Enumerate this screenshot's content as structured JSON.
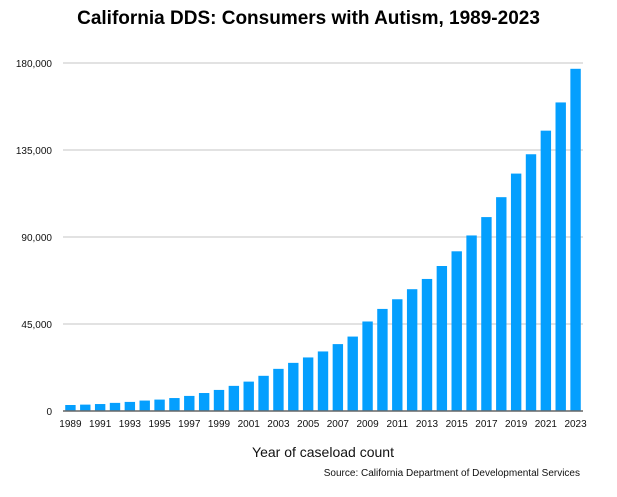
{
  "chart_data": {
    "type": "bar",
    "title": "California DDS: Consumers with Autism, 1989-2023",
    "xlabel": "Year of caseload count",
    "ylabel": "",
    "source": "Source: California Department of Developmental Services",
    "ylim": [
      0,
      180000
    ],
    "yticks": [
      0,
      45000,
      90000,
      135000,
      180000
    ],
    "ytick_labels": [
      "0",
      "45,000",
      "90,000",
      "135,000",
      "180,000"
    ],
    "grid": true,
    "bar_color": "#049ffe",
    "categories": [
      "1989",
      "1990",
      "1991",
      "1992",
      "1993",
      "1994",
      "1995",
      "1996",
      "1997",
      "1998",
      "1999",
      "2000",
      "2001",
      "2002",
      "2003",
      "2004",
      "2005",
      "2006",
      "2007",
      "2008",
      "2009",
      "2010",
      "2011",
      "2012",
      "2013",
      "2014",
      "2015",
      "2016",
      "2017",
      "2018",
      "2019",
      "2020",
      "2021",
      "2022",
      "2023"
    ],
    "xtick_labels": [
      "1989",
      "1991",
      "1993",
      "1995",
      "1997",
      "1999",
      "2001",
      "2003",
      "2005",
      "2007",
      "2009",
      "2011",
      "2013",
      "2015",
      "2017",
      "2019",
      "2021",
      "2023"
    ],
    "values": [
      3100,
      3300,
      3600,
      4200,
      4700,
      5400,
      5900,
      6700,
      7800,
      9300,
      10900,
      13000,
      15200,
      18200,
      21800,
      24900,
      27700,
      30800,
      34600,
      38500,
      46300,
      52800,
      57800,
      63000,
      68300,
      75000,
      82600,
      90800,
      100300,
      110600,
      122800,
      132800,
      145000,
      159600,
      177000
    ]
  }
}
